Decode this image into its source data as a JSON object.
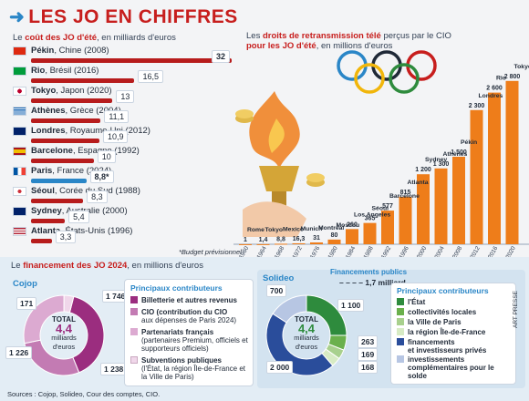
{
  "header": {
    "title": "LES JO EN CHIFFRES"
  },
  "cost": {
    "title_prefix": "Le ",
    "title_bold": "coût des JO d'été",
    "title_suffix": ", en milliards d'euros",
    "note": "*Budget prévisionnel",
    "rows": [
      {
        "place": "Pékin",
        "country": "Chine",
        "year": "(2008)",
        "value": 32,
        "label": "32",
        "flag": "china-flag",
        "hl": true
      },
      {
        "place": "Rio",
        "country": "Brésil",
        "year": "(2016)",
        "value": 16.5,
        "label": "16,5",
        "flag": "brazil-flag"
      },
      {
        "place": "Tokyo",
        "country": "Japon",
        "year": "(2020)",
        "value": 13,
        "label": "13",
        "flag": "japan-flag"
      },
      {
        "place": "Athènes",
        "country": "Grèce",
        "year": "(2004)",
        "value": 11.1,
        "label": "11,1",
        "flag": "greece-flag"
      },
      {
        "place": "Londres",
        "country": "Royaume-Uni",
        "year": "(2012)",
        "value": 10.9,
        "label": "10,9",
        "flag": "uk-flag"
      },
      {
        "place": "Barcelone",
        "country": "Espagne",
        "year": "(1992)",
        "value": 10,
        "label": "10",
        "flag": "spain-flag"
      },
      {
        "place": "Paris",
        "country": "France",
        "year": "(2024)",
        "value": 8.8,
        "label": "8,8*",
        "flag": "france-flag",
        "hl": true
      },
      {
        "place": "Séoul",
        "country": "Corée du Sud",
        "year": "(1988)",
        "value": 8.3,
        "label": "8,3",
        "flag": "korea-flag"
      },
      {
        "place": "Sydney",
        "country": "Australie",
        "year": "(2000)",
        "value": 5.4,
        "label": "5,4",
        "flag": "australia-flag"
      },
      {
        "place": "Atlanta",
        "country": "États-Unis",
        "year": "(1996)",
        "value": 3.3,
        "label": "3,3",
        "flag": "usa-flag"
      }
    ]
  },
  "tv": {
    "title_l1_a": "Les ",
    "title_l1_b": "droits de retransmission télé",
    "title_l1_c": " perçus par le CIO",
    "title_l2_a": "pour les JO d'été",
    "title_l2_b": ", en millions d'euros"
  },
  "chart_data": {
    "type": "bar",
    "title": "Les droits de retransmission télé perçus par le CIO pour les JO d'été, en millions d'euros",
    "categories": [
      "1960",
      "1964",
      "1968",
      "1972",
      "1976",
      "1980",
      "1984",
      "1988",
      "1992",
      "1996",
      "2000",
      "2004",
      "2008",
      "2012",
      "2016",
      "2020"
    ],
    "values": [
      1,
      1.4,
      8.8,
      16.3,
      31,
      80,
      260,
      365,
      577,
      815,
      1200,
      1300,
      1500,
      2300,
      2600,
      2800
    ],
    "value_labels": [
      "1",
      "1,4",
      "8,8",
      "16,3",
      "31",
      "80",
      "260",
      "365",
      "577",
      "815",
      "1 200",
      "1 300",
      "1 500",
      "2 300",
      "2 600",
      "2 800"
    ],
    "cities": [
      "Rome",
      "Tokyo",
      "Mexico",
      "Munich",
      "Montréal",
      "Moscou",
      "Los Angeles",
      "Séoul",
      "Barcelone",
      "Atlanta",
      "Sydney",
      "Athènes",
      "Pékin",
      "Londres",
      "Rio",
      "Tokyo"
    ],
    "ylim": [
      0,
      3000
    ],
    "color": "#ee7d1a"
  },
  "funding": {
    "title_a": "Le ",
    "title_b": "financement des JO 2024",
    "title_c": ", en millions d'euros",
    "cojop": {
      "name": "Cojop",
      "total_label": "TOTAL",
      "total_value": "4,4",
      "total_unit_l1": "milliards",
      "total_unit_l2": "d'euros",
      "segments": [
        {
          "name": "Billetterie et autres revenus",
          "value": 1746,
          "label": "1 746",
          "color": "#9b2d7f"
        },
        {
          "name": "CIO",
          "value": 1226,
          "label": "1 226",
          "color": "#c37bb3"
        },
        {
          "name": "Partenariats français",
          "value": 1238,
          "label": "1 238",
          "color": "#dcaad1"
        },
        {
          "name": "Subventions publiques",
          "value": 171,
          "label": "171",
          "color": "#f0d7ea"
        }
      ],
      "legend_title": "Principaux contributeurs",
      "legend": [
        {
          "l1": "Billetterie et autres revenus",
          "l2": ""
        },
        {
          "l1": "CIO (contribution du CIO",
          "l2": "aux dépenses de Paris 2024)"
        },
        {
          "l1": "Partenariats français",
          "l2": "(partenaires Premium, officiels et supporteurs officiels)"
        },
        {
          "l1": "Subventions publiques",
          "l2": "(l'État, la région Île-de-France et la Ville de Paris)"
        }
      ]
    },
    "solideo": {
      "name": "Solideo",
      "total_label": "TOTAL",
      "total_value": "4,4",
      "total_unit_l1": "milliards",
      "total_unit_l2": "d'euros",
      "public_label": "Financements publics",
      "public_value": "1,7 milliard",
      "segments": [
        {
          "name": "l'État",
          "value": 1100,
          "label": "1 100",
          "color": "#2e8b3d"
        },
        {
          "name": "collectivités locales",
          "value": 263,
          "label": "263",
          "color": "#6ab04c"
        },
        {
          "name": "la Ville de Paris",
          "value": 169,
          "label": "169",
          "color": "#a8d08d"
        },
        {
          "name": "la région Île-de-France",
          "value": 168,
          "label": "168",
          "color": "#d7ebc4"
        },
        {
          "name": "financements et investisseurs privés",
          "value": 2000,
          "label": "2 000",
          "color": "#2a4d9b"
        },
        {
          "name": "investissements complémentaires pour le solde",
          "value": 700,
          "label": "700",
          "color": "#b7c6e3"
        }
      ],
      "legend_title": "Principaux contributeurs",
      "legend": [
        {
          "l1": "l'État",
          "l2": ""
        },
        {
          "l1": "collectivités locales",
          "l2": ""
        },
        {
          "l1": "la Ville de Paris",
          "l2": ""
        },
        {
          "l1": "la région Île-de-France",
          "l2": ""
        },
        {
          "l1": "financements",
          "l2": "et investisseurs privés"
        },
        {
          "l1": "investissements",
          "l2": "complémentaires pour le solde"
        }
      ]
    }
  },
  "footer": {
    "sources": "Sources : Cojop, Solideo, Cour des comptes, CIO.",
    "credit": "ART PRESSE"
  }
}
